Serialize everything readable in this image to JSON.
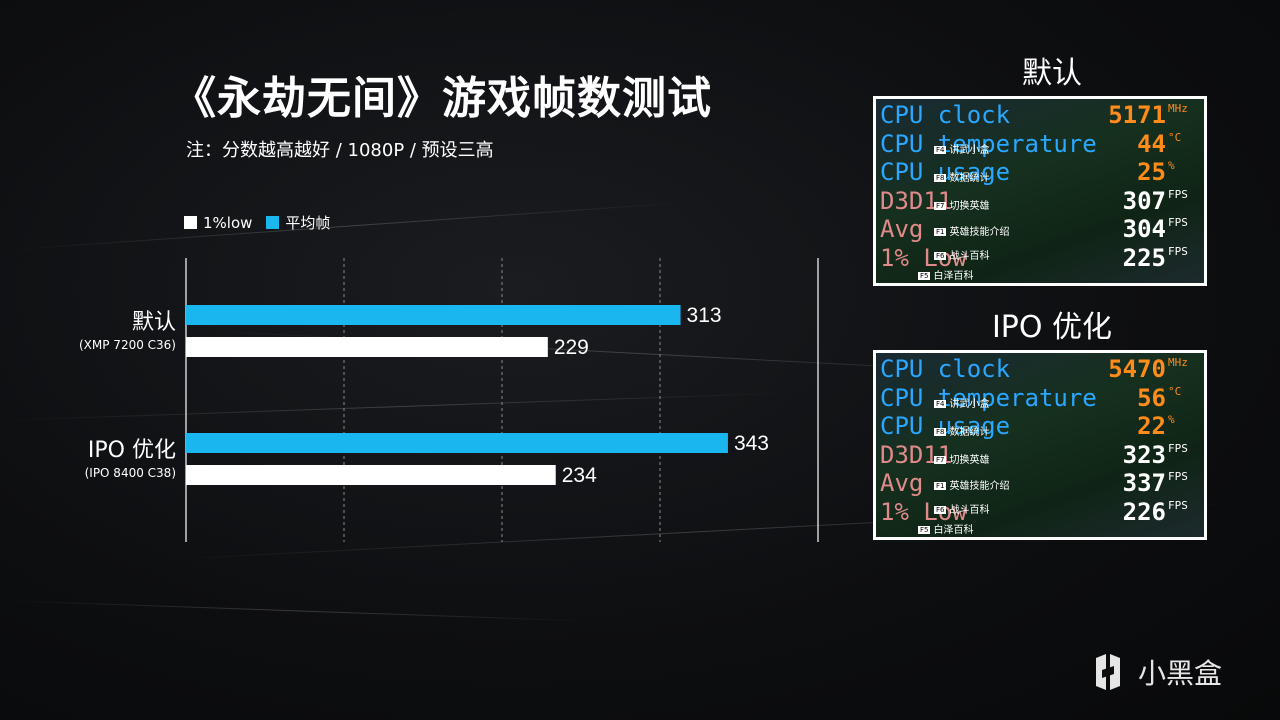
{
  "title": "《永劫无间》游戏帧数测试",
  "subtitle": "注：分数越高越好 / 1080P / 预设三高",
  "legend": {
    "low_label": "1%low",
    "avg_label": "平均帧"
  },
  "colors": {
    "avg": "#19b6f0",
    "low": "#ffffff",
    "osd_blue": "#2aa7ff",
    "osd_orange": "#ff8c1a",
    "osd_pink": "#e08a8a"
  },
  "chart_data": {
    "type": "bar",
    "orientation": "horizontal",
    "title": "《永劫无间》游戏帧数测试",
    "categories": [
      "默认",
      "IPO 优化"
    ],
    "category_sublabels": [
      "(XMP 7200 C36)",
      "(IPO 8400 C38)"
    ],
    "series": [
      {
        "name": "平均帧",
        "values": [
          313,
          343
        ]
      },
      {
        "name": "1%low",
        "values": [
          229,
          234
        ]
      }
    ],
    "xlim": [
      0,
      400
    ],
    "grid": true,
    "legend_position": "top-left"
  },
  "panels": [
    {
      "title": "默认",
      "rows": [
        {
          "label": "CPU clock",
          "value": "5171",
          "unit": "MHz",
          "label_color": "blue",
          "value_color": "orange"
        },
        {
          "label": "CPU temperature",
          "value": "44",
          "unit": "°C",
          "label_color": "blue",
          "value_color": "orange"
        },
        {
          "label": "CPU usage",
          "value": "25",
          "unit": "%",
          "label_color": "blue",
          "value_color": "orange"
        },
        {
          "label": "D3D11",
          "value": "307",
          "unit": "FPS",
          "label_color": "pink",
          "value_color": "white"
        },
        {
          "label": "Avg",
          "value": "304",
          "unit": "FPS",
          "label_color": "pink",
          "value_color": "white"
        },
        {
          "label": "1% Low",
          "value": "225",
          "unit": "FPS",
          "label_color": "pink",
          "value_color": "white"
        }
      ],
      "overlay": [
        {
          "key": "F4",
          "text": "讲武小盒"
        },
        {
          "key": "F8",
          "text": "数据统计"
        },
        {
          "key": "F7",
          "text": "切换英雄"
        },
        {
          "key": "F1",
          "text": "英雄技能介绍"
        },
        {
          "key": "F6",
          "text": "战斗百科"
        },
        {
          "key": "F5",
          "text": "白泽百科"
        }
      ]
    },
    {
      "title": "IPO 优化",
      "rows": [
        {
          "label": "CPU clock",
          "value": "5470",
          "unit": "MHz",
          "label_color": "blue",
          "value_color": "orange"
        },
        {
          "label": "CPU temperature",
          "value": "56",
          "unit": "°C",
          "label_color": "blue",
          "value_color": "orange"
        },
        {
          "label": "CPU usage",
          "value": "22",
          "unit": "%",
          "label_color": "blue",
          "value_color": "orange"
        },
        {
          "label": "D3D11",
          "value": "323",
          "unit": "FPS",
          "label_color": "pink",
          "value_color": "white"
        },
        {
          "label": "Avg",
          "value": "337",
          "unit": "FPS",
          "label_color": "pink",
          "value_color": "white"
        },
        {
          "label": "1% Low",
          "value": "226",
          "unit": "FPS",
          "label_color": "pink",
          "value_color": "white"
        }
      ],
      "overlay": [
        {
          "key": "F4",
          "text": "讲武小盒"
        },
        {
          "key": "F8",
          "text": "数据统计"
        },
        {
          "key": "F7",
          "text": "切换英雄"
        },
        {
          "key": "F1",
          "text": "英雄技能介绍"
        },
        {
          "key": "F6",
          "text": "战斗百科"
        },
        {
          "key": "F5",
          "text": "白泽百科"
        }
      ]
    }
  ],
  "watermark": {
    "icon": "xiaoheihe-logo-icon",
    "text": "小黑盒"
  }
}
